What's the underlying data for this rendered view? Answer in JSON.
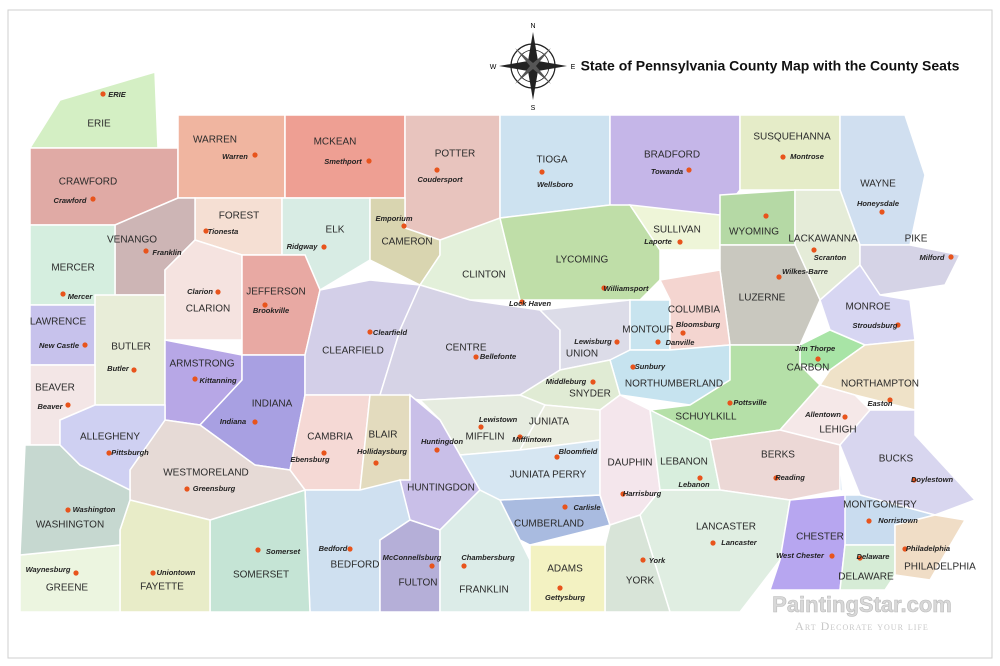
{
  "title": "State of Pennsylvania County Map with the County Seats",
  "compass": {
    "north": "N",
    "south": "S",
    "east": "E",
    "west": "W"
  },
  "counties": [
    {
      "name": "ERIE",
      "seat": "ERIE",
      "color": "#d4efc4"
    },
    {
      "name": "CRAWFORD",
      "seat": "Crawford",
      "color": "#e0aaa5"
    },
    {
      "name": "WARREN",
      "seat": "Warren",
      "color": "#f0b5a0"
    },
    {
      "name": "MCKEAN",
      "seat": "Smethport",
      "color": "#ee9f93"
    },
    {
      "name": "POTTER",
      "seat": "Coudersport",
      "color": "#e8c4be"
    },
    {
      "name": "TIOGA",
      "seat": "Wellsboro",
      "color": "#cde2f0"
    },
    {
      "name": "BRADFORD",
      "seat": "Towanda",
      "color": "#c5b6e8"
    },
    {
      "name": "SUSQUEHANNA",
      "seat": "Montrose",
      "color": "#e5ecc8"
    },
    {
      "name": "WAYNE",
      "seat": "Honeysdale",
      "color": "#d0dff0"
    },
    {
      "name": "FOREST",
      "seat": "Tionesta",
      "color": "#f5dfd3"
    },
    {
      "name": "ELK",
      "seat": "Ridgway",
      "color": "#d8ece4"
    },
    {
      "name": "CAMERON",
      "seat": "Emporium",
      "color": "#d9d5b0"
    },
    {
      "name": "VENANGO",
      "seat": "Franklin",
      "color": "#cdb5b5"
    },
    {
      "name": "MERCER",
      "seat": "Mercer",
      "color": "#d5eedf"
    },
    {
      "name": "CLARION",
      "seat": "Clarion",
      "color": "#f5e3e0"
    },
    {
      "name": "JEFFERSON",
      "seat": "Brookville",
      "color": "#e8a9a3"
    },
    {
      "name": "LAWRENCE",
      "seat": "New Castle",
      "color": "#c7c2ec"
    },
    {
      "name": "BUTLER",
      "seat": "Butler",
      "color": "#e8edd8"
    },
    {
      "name": "BEAVER",
      "seat": "Beaver",
      "color": "#f3e6e6"
    },
    {
      "name": "ARMSTRONG",
      "seat": "Kittanning",
      "color": "#b7a7e6"
    },
    {
      "name": "INDIANA",
      "seat": "Indiana",
      "color": "#a8a0e2"
    },
    {
      "name": "CLEARFIELD",
      "seat": "Clearfield",
      "color": "#d3cfe8"
    },
    {
      "name": "CLINTON",
      "seat": "Lock Haven",
      "color": "#e3f0da"
    },
    {
      "name": "LYCOMING",
      "seat": "Williamsport",
      "color": "#bfdea8"
    },
    {
      "name": "SULLIVAN",
      "seat": "Laporte",
      "color": "#eef5d8"
    },
    {
      "name": "WYOMING",
      "color": "#b5d9a5"
    },
    {
      "name": "LACKAWANNA",
      "seat": "Scranton",
      "color": "#e5ecd8"
    },
    {
      "name": "PIKE",
      "seat": "Milford",
      "color": "#d5d3e6"
    },
    {
      "name": "LUZERNE",
      "seat": "Wilkes-Barre",
      "color": "#c9c8bf"
    },
    {
      "name": "MONROE",
      "seat": "Stroudsburg",
      "color": "#d7d6f2"
    },
    {
      "name": "CARBON",
      "seat": "Jim Thorpe",
      "color": "#a8e4a6"
    },
    {
      "name": "CENTRE",
      "seat": "Bellefonte",
      "color": "#d6d3e6"
    },
    {
      "name": "UNION",
      "seat": "Lewisburg",
      "color": "#dcdce8"
    },
    {
      "name": "MONTOUR",
      "seat": "Danville",
      "color": "#c8e4ef"
    },
    {
      "name": "COLUMBIA",
      "seat": "Bloomsburg",
      "color": "#f4d5d0"
    },
    {
      "name": "NORTHUMBERLAND",
      "seat": "Sunbury",
      "color": "#c6e3ef"
    },
    {
      "name": "SNYDER",
      "seat": "Middleburg",
      "color": "#e0ebd4"
    },
    {
      "name": "MIFFLIN",
      "seat": "Lewistown",
      "color": "#e6ece0"
    },
    {
      "name": "JUNIATA",
      "seat": "Mifflintown",
      "color": "#ebeee0"
    },
    {
      "name": "SCHUYLKILL",
      "seat": "Pottsville",
      "color": "#b5e0a8"
    },
    {
      "name": "NORTHAMPTON",
      "seat": "Easton",
      "color": "#efe2c8"
    },
    {
      "name": "LEHIGH",
      "seat": "Allentown",
      "color": "#f5e8e8"
    },
    {
      "name": "CAMBRIA",
      "seat": "Ebensburg",
      "color": "#f5d9d5"
    },
    {
      "name": "BLAIR",
      "seat": "Hollidaysburg",
      "color": "#e3dbbe"
    },
    {
      "name": "HUNTINGDON",
      "seat": "Huntingdon",
      "color": "#c9bfe8"
    },
    {
      "name": "BEDFORD",
      "seat": "Bedford",
      "color": "#cfe0f0"
    },
    {
      "name": "FULTON",
      "seat": "McConnellsburg",
      "color": "#b5afd8"
    },
    {
      "name": "FRANKLIN",
      "seat": "Chambersburg",
      "color": "#dcece8"
    },
    {
      "name": "CUMBERLAND",
      "seat": "Carlisle",
      "color": "#a9bbe0"
    },
    {
      "name": "JUNIATA PERRY",
      "seat": "Bloomfield",
      "color": "#d6e6f2"
    },
    {
      "name": "DAUPHIN",
      "seat": "Harrisburg",
      "color": "#f4e6ec"
    },
    {
      "name": "LEBANON",
      "seat": "Lebanon",
      "color": "#d8eedd"
    },
    {
      "name": "BERKS",
      "seat": "Reading",
      "color": "#ecd8d6"
    },
    {
      "name": "BUCKS",
      "seat": "Doylestown",
      "color": "#d8d6ef"
    },
    {
      "name": "MONTGOMERY",
      "seat": "Norristown",
      "color": "#c9dcef"
    },
    {
      "name": "LANCASTER",
      "seat": "Lancaster",
      "color": "#e0eee2"
    },
    {
      "name": "CHESTER",
      "seat": "West Chester",
      "color": "#b7a6f0"
    },
    {
      "name": "DELAWARE",
      "seat": "Delaware",
      "color": "#d6ecd6"
    },
    {
      "name": "PHILADELPHIA",
      "seat": "Philadelphia",
      "color": "#f0ddc6"
    },
    {
      "name": "YORK",
      "seat": "York",
      "color": "#d8e4d8"
    },
    {
      "name": "ADAMS",
      "seat": "Gettysburg",
      "color": "#f3f2c2"
    },
    {
      "name": "SOMERSET",
      "seat": "Somerset",
      "color": "#c5e4d5"
    },
    {
      "name": "WESTMORELAND",
      "seat": "Greensburg",
      "color": "#e6dad6"
    },
    {
      "name": "FAYETTE",
      "seat": "Uniontown",
      "color": "#e8ecc8"
    },
    {
      "name": "GREENE",
      "seat": "Waynesburg",
      "color": "#ecf5e0"
    },
    {
      "name": "WASHINGTON",
      "seat": "Washington",
      "color": "#c6d8d0"
    },
    {
      "name": "ALLEGHENY",
      "seat": "Pittsburgh",
      "color": "#cfd0f2"
    }
  ],
  "watermark": {
    "site": "PaintingStar.com",
    "tagline": "Art Decorate your life"
  }
}
